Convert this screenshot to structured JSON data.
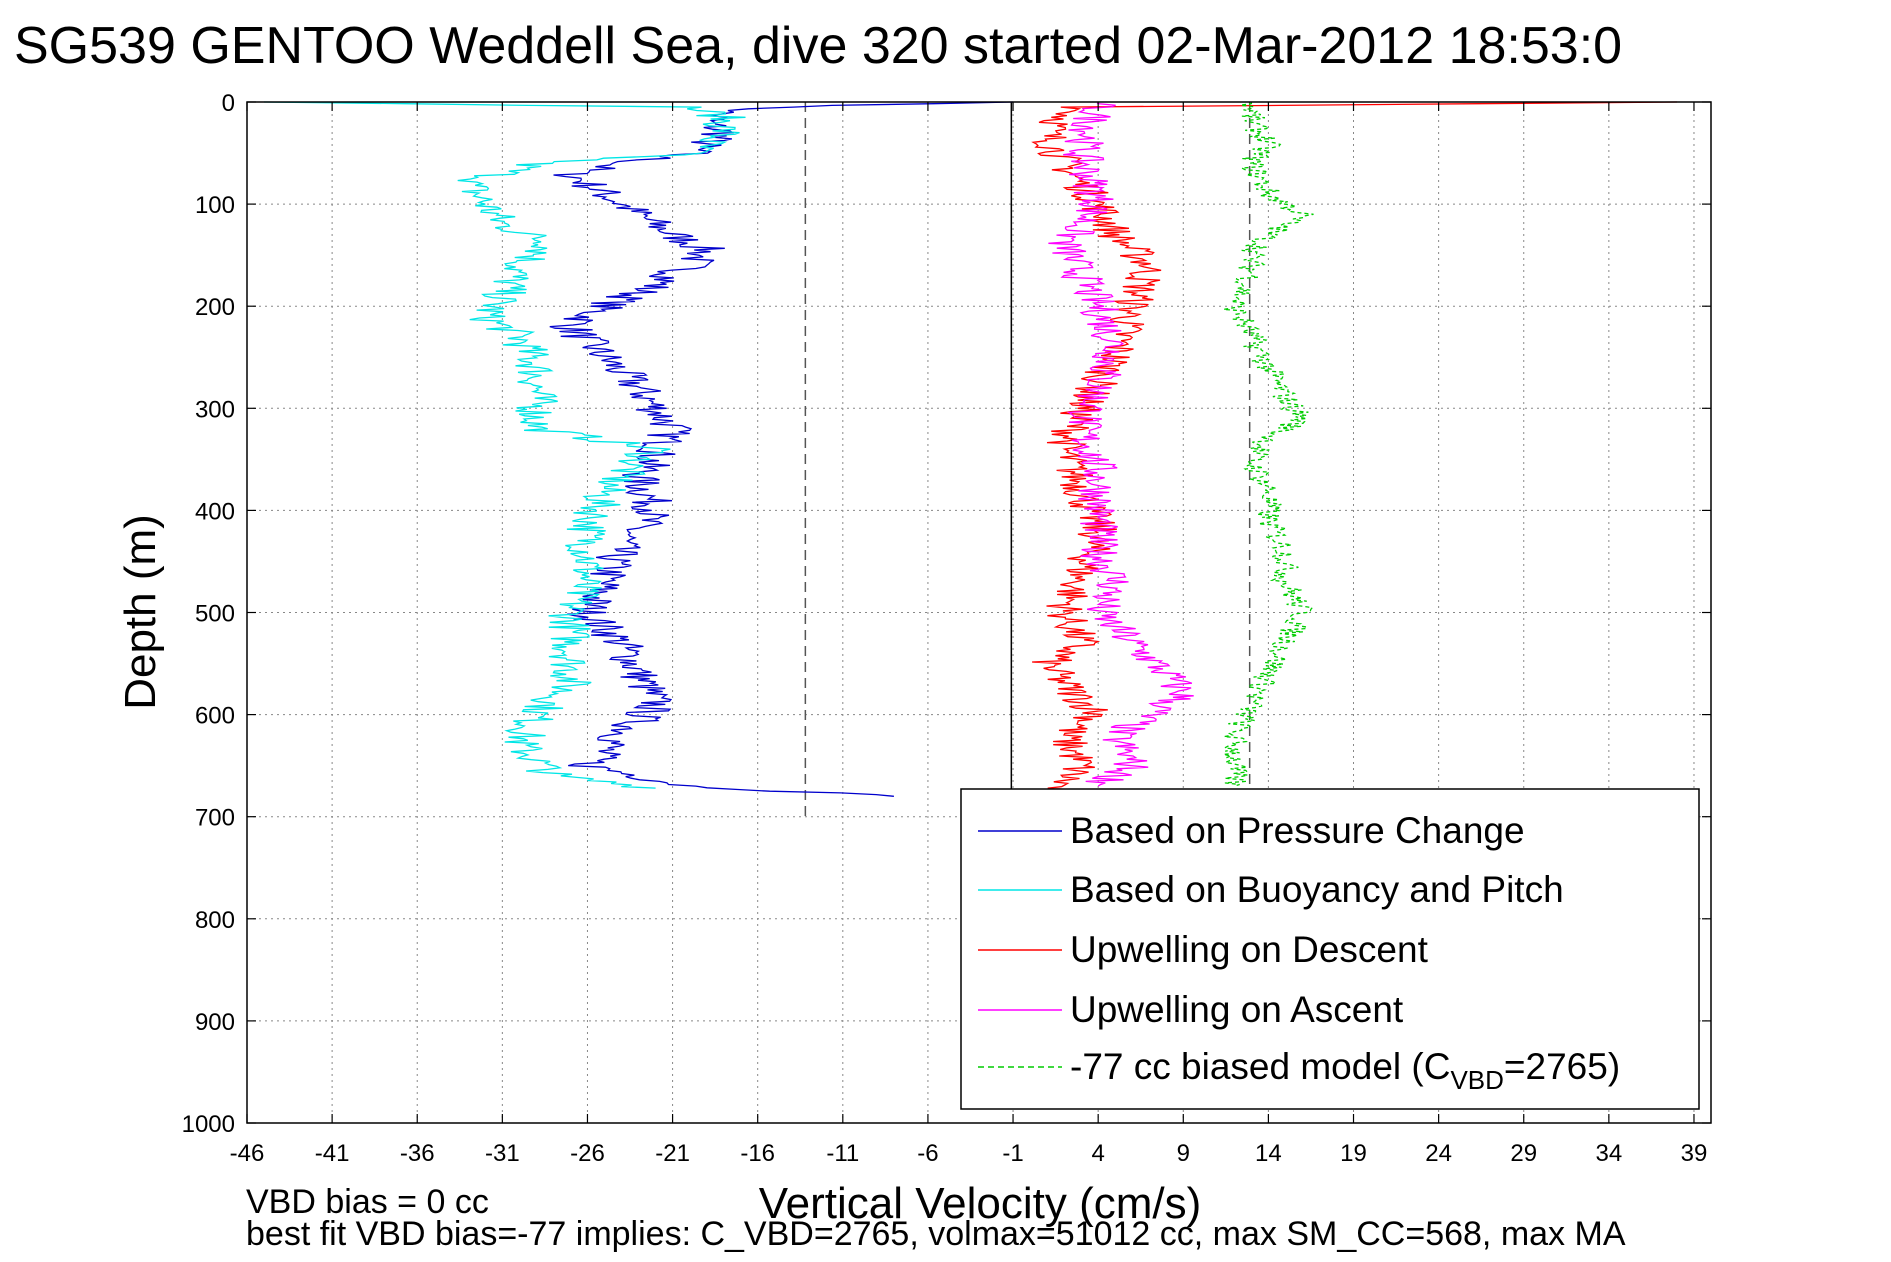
{
  "chart_data": {
    "type": "line",
    "title": "SG539 GENTOO Weddell Sea, dive 320 started 02-Mar-2012 18:53:0",
    "xlabel": "Vertical Velocity (cm/s)",
    "ylabel": "Depth (m)",
    "xlim": [
      -46,
      40
    ],
    "ylim": [
      1000,
      0
    ],
    "y_reversed": true,
    "grid": true,
    "xticks": [
      -46,
      -41,
      -36,
      -31,
      -26,
      -21,
      -16,
      -11,
      -6,
      -1,
      4,
      9,
      14,
      19,
      24,
      29,
      34,
      39
    ],
    "yticks": [
      0,
      100,
      200,
      300,
      400,
      500,
      600,
      700,
      800,
      900,
      1000
    ],
    "ref_lines": [
      {
        "name": "vertical solid",
        "x": -1.1,
        "style": "solid",
        "color": "#000000"
      },
      {
        "name": "vertical dashed left",
        "x": -13.2,
        "style": "dashed",
        "color": "#555555"
      },
      {
        "name": "vertical dashed right",
        "x": 12.9,
        "style": "dashed",
        "color": "#555555"
      }
    ],
    "legend_position": "lower-right",
    "legend": [
      {
        "label": "Based on Pressure Change",
        "color": "#0000cc",
        "style": "solid"
      },
      {
        "label": "Based on Buoyancy and Pitch",
        "color": "#00e6e6",
        "style": "solid"
      },
      {
        "label": "Upwelling on Descent",
        "color": "#ff0000",
        "style": "solid"
      },
      {
        "label": "Upwelling on Ascent",
        "color": "#ff00ff",
        "style": "solid"
      },
      {
        "label_prefix": "-77 cc biased model (C",
        "label_sub": "VBD",
        "label_suffix": "=2765)",
        "color": "#00cc00",
        "style": "dashed"
      }
    ],
    "series": [
      {
        "name": "Based on Pressure Change",
        "color": "#0000cc",
        "style": "solid",
        "depth": [
          0,
          5,
          10,
          20,
          30,
          50,
          60,
          70,
          90,
          110,
          130,
          145,
          160,
          180,
          200,
          220,
          250,
          280,
          300,
          320,
          345,
          370,
          400,
          430,
          470,
          500,
          530,
          560,
          590,
          620,
          650,
          670,
          680
        ],
        "values": [
          -1,
          -15,
          -18,
          -19,
          -18,
          -20,
          -24,
          -27,
          -25,
          -23,
          -21,
          -19,
          -20,
          -22,
          -25,
          -27,
          -25,
          -23,
          -22,
          -21,
          -22,
          -23,
          -22,
          -24,
          -25,
          -26,
          -24,
          -23,
          -22,
          -24,
          -26,
          -20,
          -8
        ]
      },
      {
        "name": "Based on Buoyancy and Pitch",
        "color": "#00e6e6",
        "style": "solid",
        "depth": [
          0,
          5,
          15,
          30,
          50,
          60,
          80,
          100,
          120,
          140,
          160,
          190,
          210,
          230,
          260,
          290,
          320,
          340,
          350,
          380,
          420,
          460,
          500,
          540,
          570,
          600,
          630,
          660,
          672
        ],
        "values": [
          -45,
          -20,
          -18,
          -18,
          -20,
          -29,
          -33,
          -32,
          -31,
          -28,
          -30,
          -31,
          -32,
          -30,
          -29,
          -29,
          -29,
          -22,
          -23,
          -25,
          -26,
          -26,
          -27,
          -27,
          -27,
          -29,
          -30,
          -28,
          -22
        ]
      },
      {
        "name": "Upwelling on Descent",
        "color": "#ff0000",
        "style": "solid",
        "depth": [
          0,
          5,
          15,
          30,
          60,
          100,
          130,
          160,
          200,
          250,
          300,
          340,
          380,
          420,
          460,
          500,
          530,
          550,
          570,
          600,
          620,
          650,
          680
        ],
        "values": [
          38,
          3,
          2,
          1,
          2,
          4,
          5,
          7,
          6,
          5,
          3,
          2,
          3,
          4,
          3,
          2,
          3,
          1,
          2,
          4,
          2,
          3,
          1
        ]
      },
      {
        "name": "Upwelling on Ascent",
        "color": "#ff00ff",
        "style": "solid",
        "depth": [
          0,
          50,
          100,
          140,
          170,
          200,
          240,
          280,
          320,
          360,
          400,
          440,
          470,
          500,
          530,
          560,
          580,
          600,
          620,
          650,
          670
        ],
        "values": [
          4,
          3,
          4,
          2,
          3,
          4,
          5,
          4,
          3,
          4,
          4,
          4,
          5,
          4,
          6,
          8,
          9,
          7,
          5,
          6,
          4
        ]
      },
      {
        "name": "-77 cc biased model",
        "color": "#00cc00",
        "style": "dashed",
        "depth": [
          0,
          20,
          40,
          60,
          90,
          110,
          130,
          150,
          170,
          200,
          230,
          260,
          290,
          310,
          330,
          350,
          380,
          410,
          440,
          470,
          500,
          530,
          560,
          590,
          620,
          650,
          670
        ],
        "values": [
          13,
          13,
          14,
          13,
          14,
          16,
          14,
          13,
          13,
          12,
          13,
          14,
          15,
          16,
          14,
          13,
          14,
          14,
          15,
          15,
          16,
          15,
          14,
          13,
          12,
          12,
          12
        ]
      }
    ]
  },
  "footer": {
    "line1": "VBD bias = 0 cc",
    "line2": "best fit VBD bias=-77 implies: C_VBD=2765, volmax=51012 cc, max SM_CC=568, max MA"
  }
}
